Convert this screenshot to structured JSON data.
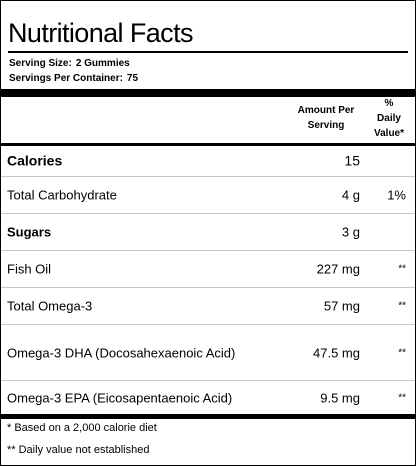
{
  "title": "Nutritional Facts",
  "serving": {
    "size_label": "Serving Size:",
    "size_value": "2 Gummies",
    "per_container_label": "Servings Per Container:",
    "per_container_value": "75"
  },
  "header": {
    "amount_line1": "Amount Per",
    "amount_line2": "Serving",
    "dv_line1": "%",
    "dv_line2": "Daily",
    "dv_line3": "Value*"
  },
  "nutrients": [
    {
      "name": "Calories",
      "amount": "15",
      "dv": ""
    },
    {
      "name": "Total Carbohydrate",
      "amount": "4 g",
      "dv": "1%"
    },
    {
      "name": "Sugars",
      "amount": "3 g",
      "dv": ""
    },
    {
      "name": "Fish Oil",
      "amount": "227 mg",
      "dv": "**"
    },
    {
      "name": "Total Omega-3",
      "amount": "57 mg",
      "dv": "**"
    },
    {
      "name": "Omega-3 DHA (Docosahexaenoic Acid)",
      "amount": "47.5 mg",
      "dv": "**"
    },
    {
      "name": "Omega-3 EPA (Eicosapentaenoic Acid)",
      "amount": "9.5 mg",
      "dv": "**"
    }
  ],
  "footnotes": [
    "* Based on a 2,000 calorie diet",
    "** Daily value not established"
  ]
}
